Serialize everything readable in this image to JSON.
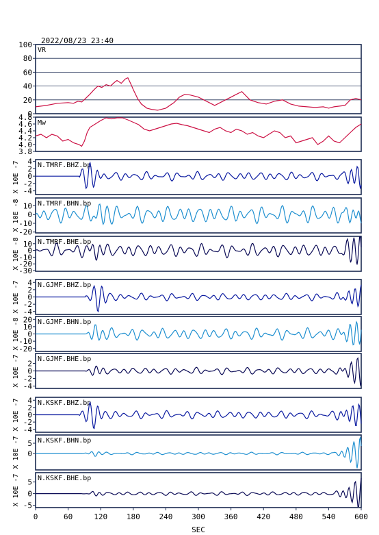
{
  "chart_data": {
    "type": "line",
    "title": "2022/08/23 23:40",
    "xlabel": "SEC",
    "xlim": [
      0,
      600
    ],
    "x_ticks": [
      "0",
      "60",
      "120",
      "180",
      "240",
      "300",
      "360",
      "420",
      "480",
      "540",
      "600"
    ],
    "colors": {
      "vr": "#cc1144",
      "mw": "#cc1144",
      "bhz": "#0a1aa0",
      "bhn": "#1e8fd0",
      "bhe": "#0a0a55",
      "axis": "#1a2a50"
    },
    "panels": [
      {
        "name": "VR",
        "ylim": [
          0,
          100
        ],
        "grid": true,
        "y_ticks": [
          "0",
          "20",
          "40",
          "60",
          "80",
          "100"
        ],
        "x": [
          0,
          20,
          40,
          60,
          70,
          78,
          85,
          92,
          100,
          108,
          115,
          122,
          130,
          138,
          145,
          150,
          158,
          165,
          170,
          175,
          180,
          188,
          195,
          205,
          215,
          225,
          240,
          255,
          265,
          275,
          285,
          300,
          315,
          330,
          345,
          360,
          370,
          380,
          395,
          410,
          425,
          440,
          455,
          470,
          485,
          500,
          515,
          530,
          540,
          550,
          560,
          570,
          580,
          590,
          600
        ],
        "values": [
          10,
          12,
          15,
          16,
          15,
          18,
          17,
          22,
          28,
          35,
          40,
          38,
          42,
          40,
          45,
          48,
          44,
          50,
          52,
          44,
          35,
          22,
          14,
          8,
          6,
          5,
          8,
          16,
          24,
          28,
          27,
          24,
          18,
          12,
          18,
          24,
          28,
          32,
          20,
          16,
          14,
          18,
          20,
          14,
          11,
          10,
          9,
          10,
          8,
          10,
          11,
          12,
          20,
          22,
          20
        ]
      },
      {
        "name": "Mw",
        "ylim": [
          3.8,
          4.8
        ],
        "grid": false,
        "y_ticks": [
          "3.8",
          "4.0",
          "4.2",
          "4.4",
          "4.6",
          "4.8"
        ],
        "x": [
          0,
          10,
          20,
          30,
          40,
          50,
          60,
          70,
          80,
          85,
          90,
          95,
          100,
          110,
          120,
          130,
          140,
          150,
          160,
          170,
          180,
          190,
          200,
          210,
          220,
          230,
          240,
          250,
          260,
          270,
          280,
          290,
          300,
          310,
          320,
          330,
          340,
          350,
          360,
          370,
          380,
          390,
          400,
          410,
          420,
          430,
          440,
          450,
          460,
          470,
          480,
          490,
          500,
          510,
          520,
          530,
          540,
          550,
          560,
          570,
          580,
          590,
          600
        ],
        "values": [
          4.25,
          4.3,
          4.2,
          4.3,
          4.25,
          4.1,
          4.15,
          4.05,
          4.0,
          3.95,
          4.1,
          4.35,
          4.5,
          4.6,
          4.7,
          4.8,
          4.75,
          4.8,
          4.78,
          4.72,
          4.65,
          4.58,
          4.45,
          4.4,
          4.45,
          4.5,
          4.55,
          4.6,
          4.62,
          4.58,
          4.55,
          4.5,
          4.45,
          4.4,
          4.35,
          4.45,
          4.5,
          4.4,
          4.35,
          4.45,
          4.4,
          4.3,
          4.35,
          4.25,
          4.2,
          4.3,
          4.4,
          4.35,
          4.2,
          4.25,
          4.05,
          4.1,
          4.15,
          4.2,
          4.0,
          4.1,
          4.25,
          4.1,
          4.05,
          4.2,
          4.35,
          4.5,
          4.6
        ]
      },
      {
        "name": "N.TMRF.BHZ.bp",
        "ylabel": "X 10E -7",
        "ylim": [
          -5,
          4.5
        ],
        "y_ticks": [
          "-4",
          "-2",
          "0",
          "2",
          "4"
        ],
        "color": "bhz",
        "amp": 1.2,
        "onset": 80,
        "burst": [
          100,
          4.5,
          14
        ],
        "end": 3.5,
        "seed": 1
      },
      {
        "name": "N.TMRF.BHN.bp",
        "ylabel": "X 10E -8",
        "ylim": [
          -21,
          19
        ],
        "y_ticks": [
          "-20",
          "-10",
          "0",
          "10"
        ],
        "color": "bhn",
        "amp": 10,
        "onset": 0,
        "burst": [
          120,
          14,
          12
        ],
        "end": 12,
        "seed": 2
      },
      {
        "name": "N.TMRF.BHE.bp",
        "ylabel": "X 10E -8",
        "ylim": [
          -31,
          21
        ],
        "y_ticks": [
          "-30",
          "-20",
          "-10",
          "0",
          "10"
        ],
        "color": "bhe",
        "amp": 10,
        "onset": 0,
        "burst": [
          110,
          14,
          10
        ],
        "end": 28,
        "seed": 3
      },
      {
        "name": "N.GJMF.BHZ.bp",
        "ylabel": "X 10E -7",
        "ylim": [
          -4.8,
          4.8
        ],
        "y_ticks": [
          "-4",
          "-2",
          "0",
          "2",
          "4"
        ],
        "color": "bhz",
        "amp": 1.0,
        "onset": 92,
        "burst": [
          115,
          4.5,
          14
        ],
        "end": 3.8,
        "seed": 4
      },
      {
        "name": "N.GJMF.BHN.bp",
        "ylabel": "X 10E -8",
        "ylim": [
          -24,
          24
        ],
        "y_ticks": [
          "-20",
          "-10",
          "0",
          "10",
          "20"
        ],
        "color": "bhn",
        "amp": 8,
        "onset": 92,
        "burst": [
          110,
          14,
          12
        ],
        "end": 22,
        "seed": 5
      },
      {
        "name": "N.GJMF.BHE.bp",
        "ylabel": "X 10E -7",
        "ylim": [
          -4.6,
          4.6
        ],
        "y_ticks": [
          "-4",
          "-2",
          "0",
          "2"
        ],
        "color": "bhe",
        "amp": 0.9,
        "onset": 92,
        "burst": [
          110,
          1.5,
          12
        ],
        "end": 4.5,
        "seed": 6
      },
      {
        "name": "N.KSKF.BHZ.bp",
        "ylabel": "X 10E -7",
        "ylim": [
          -4.8,
          4.8
        ],
        "y_ticks": [
          "-4",
          "-2",
          "0",
          "2",
          "4"
        ],
        "color": "bhz",
        "amp": 1.1,
        "onset": 80,
        "burst": [
          105,
          4.5,
          16
        ],
        "end": 4.2,
        "seed": 7
      },
      {
        "name": "N.KSKF.BHN.bp",
        "ylabel": "X 10E -7",
        "ylim": [
          -8,
          9
        ],
        "y_ticks": [
          "0",
          "5"
        ],
        "color": "bhn",
        "amp": 0.6,
        "onset": 85,
        "burst": [
          110,
          1.5,
          10
        ],
        "end": 9,
        "seed": 8
      },
      {
        "name": "N.KSKF.BHE.bp",
        "ylabel": "X 10E -7",
        "ylim": [
          -6,
          9
        ],
        "y_ticks": [
          "-5",
          "0",
          "5"
        ],
        "color": "bhe",
        "amp": 0.8,
        "onset": 85,
        "burst": [
          110,
          1.5,
          10
        ],
        "end": 7.5,
        "seed": 9
      }
    ]
  }
}
